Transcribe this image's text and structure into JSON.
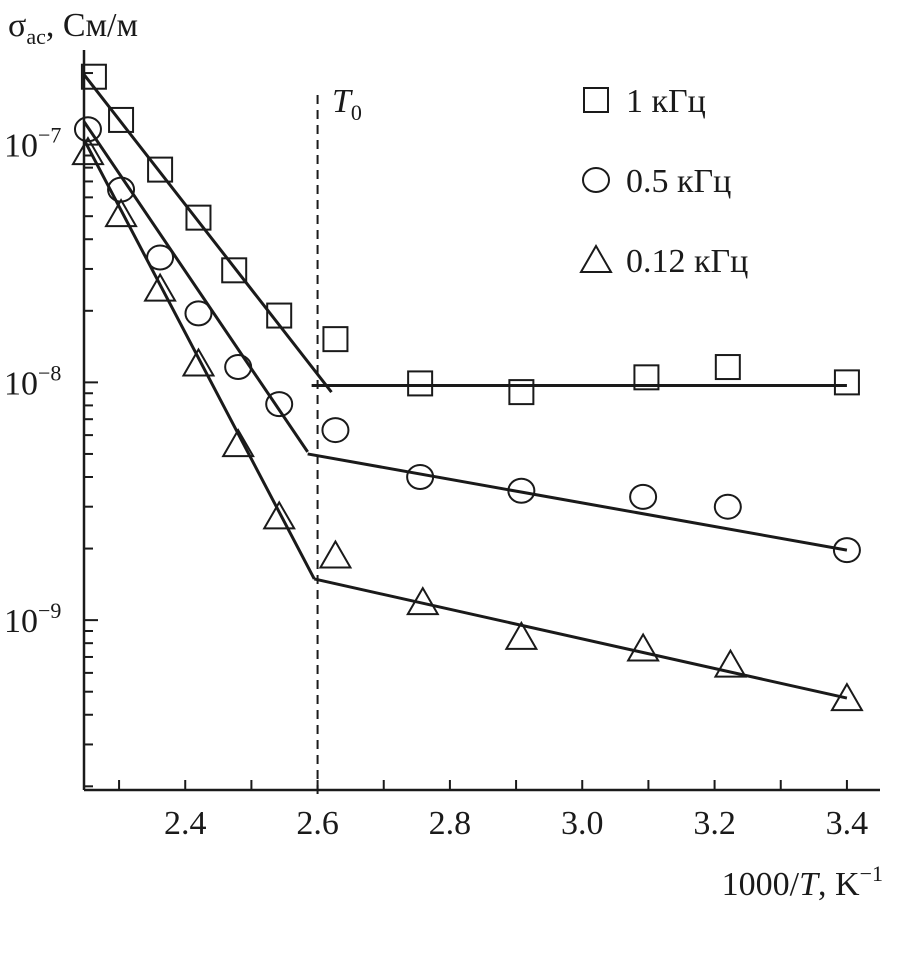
{
  "chart_data": {
    "type": "scatter",
    "title": "",
    "xlabel": "1000/T, K⁻¹",
    "xlabel_parts": {
      "pre": "1000/",
      "italic": "T",
      "post": ", K",
      "sup": "−1"
    },
    "ylabel": "σac, См/м",
    "ylabel_parts": {
      "sym": "σ",
      "sub": "ac",
      "post": ", См/м"
    },
    "xlim": [
      2.247,
      3.45
    ],
    "ylim": [
      1.93e-10,
      2.5e-07
    ],
    "yscale": "log",
    "grid": false,
    "legend_placement": "top-right",
    "x_ticks": [
      2.3,
      2.4,
      2.5,
      2.6,
      2.7,
      2.8,
      2.9,
      3.0,
      3.1,
      3.2,
      3.3,
      3.4
    ],
    "x_tick_labels": [
      "2.4",
      "2.6",
      "2.8",
      "3.0",
      "3.2",
      "3.4"
    ],
    "y_tick_labels": [
      {
        "value": 1e-07,
        "base": "10",
        "exp": "−7"
      },
      {
        "value": 1e-08,
        "base": "10",
        "exp": "−8"
      },
      {
        "value": 1e-09,
        "base": "10",
        "exp": "−9"
      }
    ],
    "annotations": [
      {
        "text": "T",
        "sub": "0",
        "x": 2.6,
        "style": "dashed-vertical-line"
      }
    ],
    "series": [
      {
        "name": "1 кГц",
        "marker": "square",
        "x": [
          2.262,
          2.303,
          2.362,
          2.42,
          2.474,
          2.542,
          2.627,
          2.755,
          2.908,
          3.097,
          3.22,
          3.4
        ],
        "y": [
          1.93e-07,
          1.27e-07,
          7.85e-08,
          4.93e-08,
          2.96e-08,
          1.91e-08,
          1.52e-08,
          9.9e-09,
          9.1e-09,
          1.05e-08,
          1.16e-08,
          1e-08
        ],
        "fit_lines": [
          [
            [
              2.247,
              1.97e-07
            ],
            [
              2.621,
              9.1e-09
            ]
          ],
          [
            [
              2.591,
              9.7e-09
            ],
            [
              3.4,
              9.7e-09
            ]
          ]
        ]
      },
      {
        "name": "0.5 кГц",
        "marker": "circle",
        "x": [
          2.253,
          2.303,
          2.362,
          2.42,
          2.48,
          2.542,
          2.627,
          2.755,
          2.908,
          3.092,
          3.22,
          3.4
        ],
        "y": [
          1.16e-07,
          6.47e-08,
          3.35e-08,
          1.95e-08,
          1.16e-08,
          8.1e-09,
          6.3e-09,
          4e-09,
          3.5e-09,
          3.3e-09,
          3e-09,
          1.97e-09
        ],
        "fit_lines": [
          [
            [
              2.247,
              1.25e-07
            ],
            [
              2.585,
              5.1e-09
            ]
          ],
          [
            [
              2.585,
              5e-09
            ],
            [
              3.4,
              1.97e-09
            ]
          ]
        ]
      },
      {
        "name": "0.12 кГц",
        "marker": "triangle",
        "x": [
          2.253,
          2.303,
          2.362,
          2.42,
          2.48,
          2.542,
          2.627,
          2.759,
          2.908,
          3.092,
          3.224,
          3.4
        ],
        "y": [
          9.3e-08,
          5.1e-08,
          2.48e-08,
          1.2e-08,
          5.5e-09,
          2.73e-09,
          1.87e-09,
          1.19e-09,
          8.5e-10,
          7.6e-10,
          6.5e-10,
          4.7e-10
        ],
        "fit_lines": [
          [
            [
              2.247,
              1.05e-07
            ],
            [
              2.595,
              1.49e-09
            ]
          ],
          [
            [
              2.595,
              1.49e-09
            ],
            [
              3.4,
              4.7e-10
            ]
          ]
        ]
      }
    ],
    "colors": {
      "ink": "#1a1a1a",
      "background": "#ffffff"
    }
  }
}
